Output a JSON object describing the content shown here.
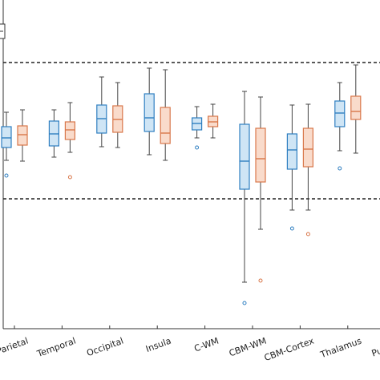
{
  "chart_data": {
    "type": "box",
    "categories": [
      "Parietal",
      "Temporal",
      "Occipital",
      "Insula",
      "C-WM",
      "CBM-WM",
      "CBM-Cortex",
      "Thalamus",
      "Putamen"
    ],
    "ylim": [
      0,
      41
    ],
    "reference_lines": [
      33.2,
      16.2
    ],
    "series": [
      {
        "color": "#2f7fc1",
        "fill": "#cfe5f5",
        "values": [
          {
            "min": 21.0,
            "q1": 22.6,
            "median": 23.8,
            "q3": 25.2,
            "max": 27.0,
            "outliers": [
              19.1
            ]
          },
          {
            "min": 21.4,
            "q1": 22.8,
            "median": 24.3,
            "q3": 25.9,
            "max": 27.3,
            "outliers": []
          },
          {
            "min": 22.7,
            "q1": 24.4,
            "median": 26.2,
            "q3": 27.9,
            "max": 31.4,
            "outliers": []
          },
          {
            "min": 21.7,
            "q1": 24.6,
            "median": 26.3,
            "q3": 29.3,
            "max": 32.5,
            "outliers": []
          },
          {
            "min": 23.8,
            "q1": 24.8,
            "median": 25.6,
            "q3": 26.3,
            "max": 27.7,
            "outliers": [
              22.6
            ]
          },
          {
            "min": 5.8,
            "q1": 17.4,
            "median": 20.9,
            "q3": 25.5,
            "max": 29.6,
            "outliers": [
              3.2
            ]
          },
          {
            "min": 14.8,
            "q1": 19.9,
            "median": 22.3,
            "q3": 24.3,
            "max": 27.9,
            "outliers": [
              12.5
            ]
          },
          {
            "min": 22.2,
            "q1": 25.2,
            "median": 26.9,
            "q3": 28.4,
            "max": 30.7,
            "outliers": [
              20.0
            ]
          },
          null
        ]
      },
      {
        "color": "#d9774a",
        "fill": "#f9dbcb",
        "values": [
          {
            "min": 20.9,
            "q1": 22.9,
            "median": 24.2,
            "q3": 25.3,
            "max": 27.3,
            "outliers": []
          },
          {
            "min": 22.0,
            "q1": 23.6,
            "median": 24.8,
            "q3": 25.8,
            "max": 28.2,
            "outliers": [
              18.9
            ]
          },
          {
            "min": 22.6,
            "q1": 24.5,
            "median": 26.1,
            "q3": 27.8,
            "max": 30.7,
            "outliers": []
          },
          {
            "min": 21.0,
            "q1": 23.1,
            "median": 24.4,
            "q3": 27.6,
            "max": 32.3,
            "outliers": []
          },
          {
            "min": 23.8,
            "q1": 25.2,
            "median": 25.8,
            "q3": 26.5,
            "max": 28.0,
            "outliers": []
          },
          {
            "min": 12.4,
            "q1": 18.3,
            "median": 21.2,
            "q3": 25.0,
            "max": 28.9,
            "outliers": [
              6.0
            ]
          },
          {
            "min": 14.8,
            "q1": 20.2,
            "median": 22.4,
            "q3": 25.0,
            "max": 28.0,
            "outliers": [
              11.8
            ]
          },
          {
            "min": 21.9,
            "q1": 26.1,
            "median": 27.1,
            "q3": 29.0,
            "max": 32.9,
            "outliers": []
          },
          null
        ]
      }
    ]
  }
}
